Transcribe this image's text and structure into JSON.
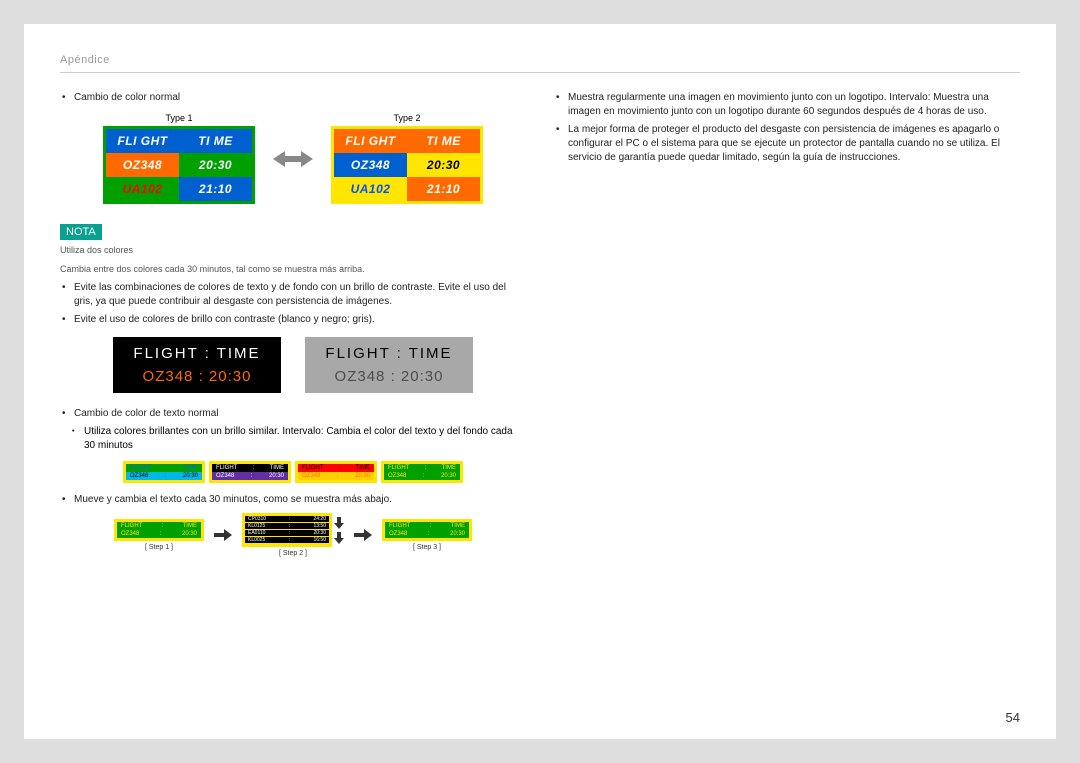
{
  "header": "Apéndice",
  "page_number": "54",
  "left": {
    "b1": "Cambio de color normal",
    "type_labels": [
      "Type 1",
      "Type 2"
    ],
    "board_headers": {
      "c1": "FLI GHT",
      "c2": "TI ME"
    },
    "board_rows": [
      {
        "c1": "OZ348",
        "c2": "20:30"
      },
      {
        "c1": "UA102",
        "c2": "21:10"
      }
    ],
    "type1": {
      "outer_bg": "#00a000",
      "head_bg_1": "#0060d0",
      "head_bg_2": "#0060d0",
      "head_fg": "#ffffff",
      "r1_bg_1": "#ff6a00",
      "r1_bg_2": "#00a000",
      "r1_fg": "#ffffff",
      "r2_bg_1": "#00a000",
      "r2_bg_2": "#0060d0",
      "r2_fg_1": "#ff0000",
      "r2_fg_2": "#ffffff"
    },
    "type2": {
      "outer_bg": "#ffe600",
      "head_bg_1": "#ff6a00",
      "head_bg_2": "#ff6a00",
      "head_fg": "#ffffff",
      "r1_bg_1": "#0060d0",
      "r1_bg_2": "#ffe600",
      "r1_fg_1": "#ffffff",
      "r1_fg_2": "#000000",
      "r2_bg_1": "#ffe600",
      "r2_bg_2": "#ff6a00",
      "r2_fg_1": "#0050ff",
      "r2_fg_2": "#ffffff"
    },
    "nota": "NOTA",
    "nota_l1": "Utiliza dos colores",
    "nota_l2": "Cambia entre dos colores cada 30 minutos, tal como se muestra más arriba.",
    "b2": "Evite las combinaciones de colores de texto y de fondo con un brillo de contraste. Evite el uso del gris, ya que puede contribuir al desgaste con persistencia de imágenes.",
    "b3": "Evite el uso de colores de brillo con contraste (blanco y negro; gris).",
    "contrast": {
      "head": "FLIGHT   :   TIME",
      "body": "OZ348    :   20:30",
      "box1": {
        "bg": "#000000",
        "head_fg": "#ffffff",
        "body_fg": "#ff6a00"
      },
      "box2": {
        "bg": "#a8a8a8",
        "head_fg": "#000000",
        "body_fg": "#4d4d4d"
      }
    },
    "b4": "Cambio de color de texto normal",
    "b4_sub": "Utiliza colores brillantes con un brillo similar. Intervalo: Cambia el color del texto y del fondo cada 30 minutos",
    "small": [
      {
        "outer": "#ffe600",
        "head_bg": "#00a000",
        "head_fg": "#0060ff",
        "body_bg": "#00b8e6",
        "body_fg": "#000"
      },
      {
        "outer": "#ffe600",
        "head_bg": "#000000",
        "head_fg": "#ffffff",
        "body_bg": "#6030a0",
        "body_fg": "#fff"
      },
      {
        "outer": "#ffe600",
        "head_bg": "#ff0000",
        "head_fg": "#000000",
        "body_bg": "#ffd000",
        "body_fg": "#ff6a00"
      },
      {
        "outer": "#ffe600",
        "head_bg": "#00a000",
        "head_fg": "#ffe600",
        "body_bg": "#00a000",
        "body_fg": "#ffe600"
      }
    ],
    "small_head_l": "FLIGHT",
    "small_head_r": "TIME",
    "small_body_l": "OZ348",
    "small_body_r": "20:30",
    "b5": "Mueve y cambia el texto cada 30 minutos, como se muestra más abajo.",
    "steps": {
      "labels": [
        "[ Step 1 ]",
        "[ Step 2 ]",
        "[ Step 3 ]"
      ],
      "line_head": {
        "l": "FLIGHT",
        "r": "TIME"
      },
      "line_body": {
        "l": "OZ348",
        "r": "20:30"
      },
      "step2_lines": [
        {
          "l": "CP0310",
          "r": "24:20"
        },
        {
          "l": "KL0125",
          "r": "13:50"
        },
        {
          "l": "EA0110",
          "r": "20:30"
        },
        {
          "l": "KL0025",
          "r": "16:50"
        }
      ]
    }
  },
  "right": {
    "b1": "Muestra regularmente una imagen en movimiento junto con un logotipo. Intervalo: Muestra una imagen en movimiento junto con un logotipo durante 60 segundos después de 4 horas de uso.",
    "b2": "La mejor forma de proteger el producto del desgaste con persistencia de imágenes es apagarlo o configurar el PC o el sistema para que se ejecute un protector de pantalla cuando no se utiliza. El servicio de garantía puede quedar limitado, según la guía de instrucciones."
  }
}
